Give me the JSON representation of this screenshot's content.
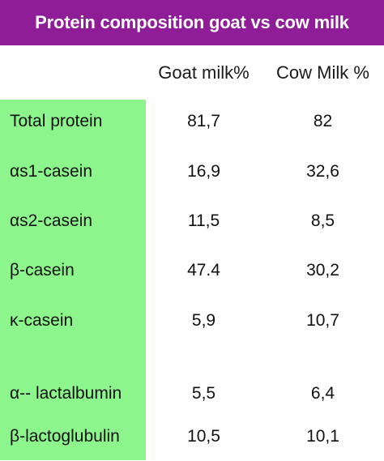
{
  "title": "Protein composition goat vs cow milk",
  "columns": {
    "goat": "Goat milk%",
    "cow": "Cow Milk %"
  },
  "rows": [
    {
      "label": "Total protein",
      "goat": "81,7",
      "cow": "82"
    },
    {
      "label": "αs1-casein",
      "goat": "16,9",
      "cow": "32,6"
    },
    {
      "label": "αs2-casein",
      "goat": "11,5",
      "cow": "8,5"
    },
    {
      "label": "β-casein",
      "goat": "47.4",
      "cow": "30,2"
    },
    {
      "label": "κ-casein",
      "goat": "5,9",
      "cow": "10,7"
    },
    {
      "label": "α-- lactalbumin",
      "goat": "5,5",
      "cow": "6,4"
    },
    {
      "label": "β-lactoglubulin",
      "goat": "10,5",
      "cow": "10,1"
    }
  ],
  "colors": {
    "title_bg": "#8f1d98",
    "label_col_bg": "#8cf58b",
    "background": "#ffffff"
  }
}
